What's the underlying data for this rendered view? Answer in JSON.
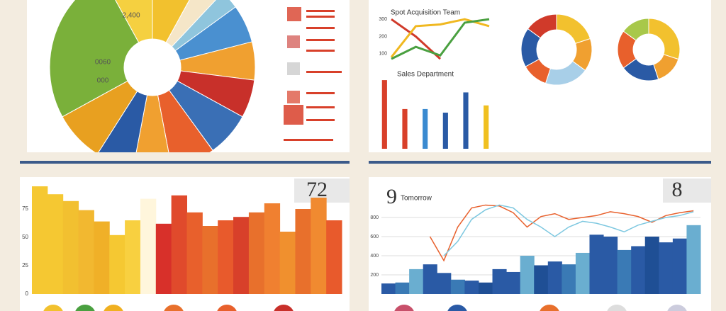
{
  "chart_data": [
    {
      "type": "pie",
      "annotations": [
        "2,400",
        "0060",
        "000"
      ],
      "values": [
        8,
        4,
        3,
        6,
        6,
        6,
        7,
        7,
        6,
        6,
        8,
        25,
        8
      ],
      "colors": [
        "#f2c12e",
        "#f5e6c8",
        "#8fc5dd",
        "#4a90d0",
        "#f0a030",
        "#c8302a",
        "#3a6fb5",
        "#e8602c",
        "#f0a030",
        "#2a5aa5",
        "#e8a020",
        "#7ab03a",
        "#f5d040"
      ]
    },
    {
      "type": "line",
      "title": "Spot Acquisition Team",
      "categories": [
        null,
        null,
        null,
        null,
        null
      ],
      "ylim": [
        50,
        350
      ],
      "yticks": [
        100,
        200,
        300
      ],
      "series": [
        {
          "color": "#d03a2a",
          "values": [
            300,
            200,
            70,
            null,
            null
          ]
        },
        {
          "color": "#f0b820",
          "values": [
            80,
            260,
            270,
            300,
            260
          ]
        },
        {
          "color": "#4aa040",
          "values": [
            70,
            140,
            90,
            280,
            300
          ]
        }
      ]
    },
    {
      "type": "bar",
      "title": "Sales Department",
      "categories": [
        null,
        null,
        null,
        null,
        null,
        null
      ],
      "ylim": [
        0,
        100
      ],
      "values": [
        95,
        55,
        55,
        50,
        78,
        60
      ],
      "colors": [
        "#d8402a",
        "#d8402a",
        "#3a8ad0",
        "#2a5aa5",
        "#2a5aa5",
        "#f0c020"
      ]
    },
    {
      "type": "pie",
      "hole": true,
      "values": [
        20,
        15,
        20,
        12,
        18,
        15
      ],
      "colors": [
        "#f2c12e",
        "#f0a030",
        "#a8cfe8",
        "#e8602c",
        "#2a5aa5",
        "#d03a2a"
      ]
    },
    {
      "type": "pie",
      "hole": true,
      "values": [
        30,
        15,
        20,
        20,
        15
      ],
      "colors": [
        "#f2c12e",
        "#f0a030",
        "#2a5aa5",
        "#e8602c",
        "#a8c84a"
      ]
    },
    {
      "type": "bar",
      "title": "72",
      "categories": [
        null,
        null,
        null,
        null,
        null,
        null,
        null,
        null,
        null,
        null,
        null,
        null,
        null,
        null,
        null,
        null,
        null,
        null,
        null,
        null
      ],
      "ylim": [
        0,
        100
      ],
      "yticks": [
        0,
        25,
        50,
        75
      ],
      "values": [
        95,
        88,
        82,
        74,
        64,
        52,
        65,
        84,
        62,
        87,
        72,
        60,
        65,
        68,
        72,
        80,
        55,
        75,
        85,
        65
      ],
      "colors": [
        "#f5c832",
        "#f5c832",
        "#f2c030",
        "#f2b830",
        "#f0b028",
        "#f5c832",
        "#f8d040",
        "#fff6dc",
        "#d8302a",
        "#e04a2c",
        "#e8602c",
        "#e8702c",
        "#e85a2c",
        "#d8402a",
        "#e8702c",
        "#f08030",
        "#f0902e",
        "#e8702c",
        "#f08a30",
        "#e85a2c"
      ]
    },
    {
      "type": "combo",
      "title": "9",
      "subtitle": "Tomorrow",
      "badge": "8",
      "categories": [
        null,
        null,
        null,
        null,
        null,
        null,
        null,
        null,
        null,
        null,
        null,
        null,
        null,
        null,
        null,
        null,
        null,
        null,
        null,
        null,
        null,
        null,
        null
      ],
      "ylim": [
        0,
        1000
      ],
      "yticks": [
        200,
        400,
        600,
        800
      ],
      "series": [
        {
          "kind": "bar",
          "color": "#2a5aa5",
          "values": [
            110,
            120,
            260,
            310,
            220,
            150,
            140,
            120,
            260,
            230,
            400,
            300,
            340,
            310,
            430,
            620,
            600,
            460,
            500,
            600,
            540,
            580,
            720
          ]
        },
        {
          "kind": "line",
          "color": "#e8602c",
          "values": [
            null,
            null,
            null,
            600,
            350,
            700,
            900,
            930,
            920,
            850,
            700,
            810,
            840,
            780,
            800,
            820,
            860,
            840,
            810,
            750,
            820,
            850,
            870
          ]
        },
        {
          "kind": "line",
          "color": "#7ec8e0",
          "values": [
            null,
            null,
            null,
            null,
            400,
            550,
            780,
            880,
            930,
            900,
            780,
            700,
            600,
            700,
            760,
            740,
            700,
            650,
            720,
            760,
            800,
            820,
            860
          ]
        }
      ]
    }
  ]
}
